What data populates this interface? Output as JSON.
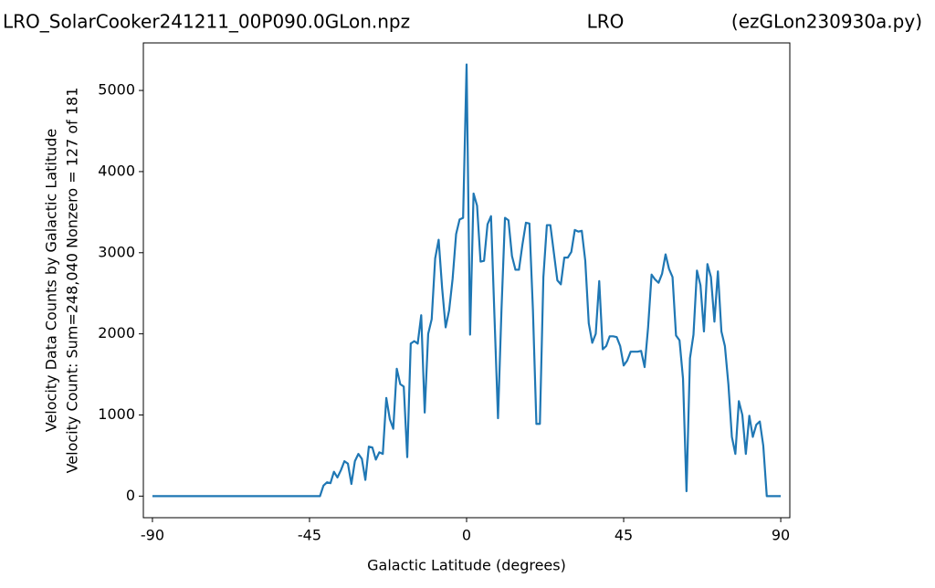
{
  "chart_data": {
    "type": "line",
    "title": [
      "LRO_SolarCooker241211_00P090.0GLon.npz",
      "LRO",
      "(ezGLon230930a.py)"
    ],
    "x_label": "Galactic Latitude (degrees)",
    "y_label": [
      "Velocity Data Counts by Galactic Latitude",
      "Velocity Count: Sum=248,040 Nonzero = 127 of 181"
    ],
    "x": [
      -90,
      -89,
      -88,
      -87,
      -86,
      -85,
      -84,
      -83,
      -82,
      -81,
      -80,
      -79,
      -78,
      -77,
      -76,
      -75,
      -74,
      -73,
      -72,
      -71,
      -70,
      -69,
      -68,
      -67,
      -66,
      -65,
      -64,
      -63,
      -62,
      -61,
      -60,
      -59,
      -58,
      -57,
      -56,
      -55,
      -54,
      -53,
      -52,
      -51,
      -50,
      -49,
      -48,
      -47,
      -46,
      -45,
      -44,
      -43,
      -42,
      -41,
      -40,
      -39,
      -38,
      -37,
      -36,
      -35,
      -34,
      -33,
      -32,
      -31,
      -30,
      -29,
      -28,
      -27,
      -26,
      -25,
      -24,
      -23,
      -22,
      -21,
      -20,
      -19,
      -18,
      -17,
      -16,
      -15,
      -14,
      -13,
      -12,
      -11,
      -10,
      -9,
      -8,
      -7,
      -6,
      -5,
      -4,
      -3,
      -2,
      -1,
      0,
      1,
      2,
      3,
      4,
      5,
      6,
      7,
      8,
      9,
      10,
      11,
      12,
      13,
      14,
      15,
      16,
      17,
      18,
      19,
      20,
      21,
      22,
      23,
      24,
      25,
      26,
      27,
      28,
      29,
      30,
      31,
      32,
      33,
      34,
      35,
      36,
      37,
      38,
      39,
      40,
      41,
      42,
      43,
      44,
      45,
      46,
      47,
      48,
      49,
      50,
      51,
      52,
      53,
      54,
      55,
      56,
      57,
      58,
      59,
      60,
      61,
      62,
      63,
      64,
      65,
      66,
      67,
      68,
      69,
      70,
      71,
      72,
      73,
      74,
      75,
      76,
      77,
      78,
      79,
      80,
      81,
      82,
      83,
      84,
      85,
      86,
      87,
      88,
      89,
      90
    ],
    "series": [
      {
        "color": "#1f77b4",
        "values": [
          0,
          0,
          0,
          0,
          0,
          0,
          0,
          0,
          0,
          0,
          0,
          0,
          0,
          0,
          0,
          0,
          0,
          0,
          0,
          0,
          0,
          0,
          0,
          0,
          0,
          0,
          0,
          0,
          0,
          0,
          0,
          0,
          0,
          0,
          0,
          0,
          0,
          0,
          0,
          0,
          0,
          0,
          0,
          0,
          0,
          0,
          0,
          0,
          0,
          130,
          170,
          160,
          300,
          230,
          320,
          430,
          400,
          150,
          430,
          520,
          460,
          200,
          610,
          600,
          450,
          540,
          520,
          1210,
          950,
          830,
          1570,
          1380,
          1350,
          480,
          1880,
          1910,
          1880,
          2230,
          1030,
          2000,
          2180,
          2930,
          3160,
          2560,
          2080,
          2290,
          2680,
          3230,
          3410,
          3430,
          5320,
          1990,
          3730,
          3580,
          2890,
          2900,
          3350,
          3450,
          2200,
          960,
          2300,
          3430,
          3400,
          2960,
          2790,
          2790,
          3100,
          3370,
          3360,
          2300,
          890,
          890,
          2700,
          3340,
          3340,
          3000,
          2660,
          2610,
          2940,
          2940,
          3010,
          3280,
          3260,
          3270,
          2900,
          2130,
          1890,
          2000,
          2650,
          1810,
          1850,
          1970,
          1970,
          1960,
          1850,
          1610,
          1670,
          1780,
          1780,
          1780,
          1790,
          1590,
          2080,
          2730,
          2670,
          2630,
          2740,
          2980,
          2800,
          2700,
          1980,
          1920,
          1450,
          60,
          1700,
          1990,
          2780,
          2600,
          2030,
          2860,
          2700,
          2150,
          2770,
          2030,
          1850,
          1380,
          730,
          520,
          1170,
          1000,
          520,
          990,
          730,
          880,
          920,
          620,
          0,
          0,
          0,
          0,
          0
        ]
      }
    ],
    "xlim": [
      -92.6,
      92.6
    ],
    "xticks": [
      -90,
      -45,
      0,
      45,
      90
    ],
    "ylim": [
      -266,
      5586
    ],
    "yticks": [
      0,
      1000,
      2000,
      3000,
      4000,
      5000
    ],
    "grid": false
  }
}
